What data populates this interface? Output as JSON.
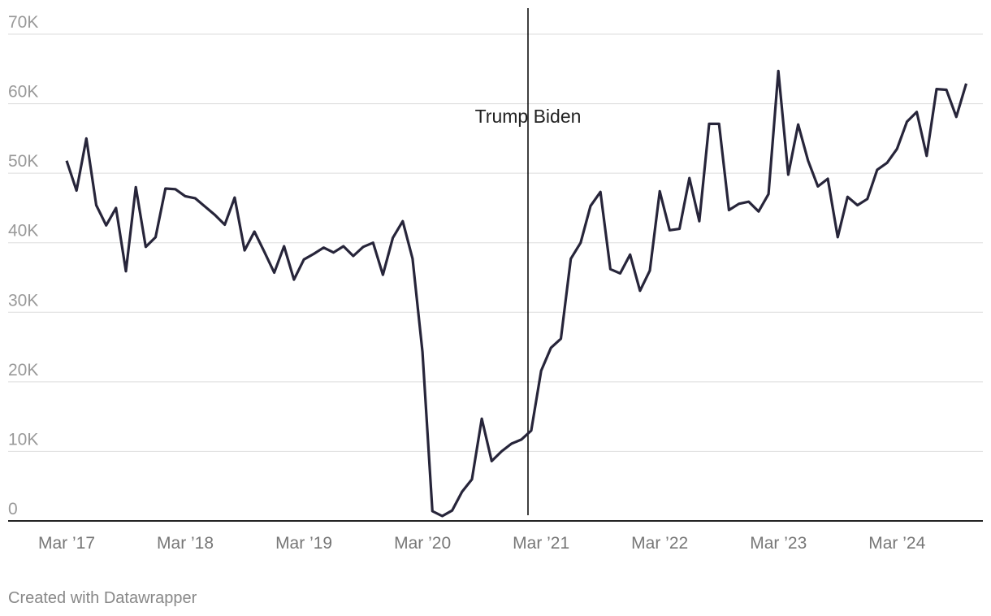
{
  "chart_data": {
    "type": "line",
    "x": [
      "2017-03",
      "2017-04",
      "2017-05",
      "2017-06",
      "2017-07",
      "2017-08",
      "2017-09",
      "2017-10",
      "2017-11",
      "2017-12",
      "2018-01",
      "2018-02",
      "2018-03",
      "2018-04",
      "2018-05",
      "2018-06",
      "2018-07",
      "2018-08",
      "2018-09",
      "2018-10",
      "2018-11",
      "2018-12",
      "2019-01",
      "2019-02",
      "2019-03",
      "2019-04",
      "2019-05",
      "2019-06",
      "2019-07",
      "2019-08",
      "2019-09",
      "2019-10",
      "2019-11",
      "2019-12",
      "2020-01",
      "2020-02",
      "2020-03",
      "2020-04",
      "2020-05",
      "2020-06",
      "2020-07",
      "2020-08",
      "2020-09",
      "2020-10",
      "2020-11",
      "2020-12",
      "2021-01",
      "2021-02",
      "2021-03",
      "2021-04",
      "2021-05",
      "2021-06",
      "2021-07",
      "2021-08",
      "2021-09",
      "2021-10",
      "2021-11",
      "2021-12",
      "2022-01",
      "2022-02",
      "2022-03",
      "2022-04",
      "2022-05",
      "2022-06",
      "2022-07",
      "2022-08",
      "2022-09",
      "2022-10",
      "2022-11",
      "2022-12",
      "2023-01",
      "2023-02",
      "2023-03",
      "2023-04",
      "2023-05",
      "2023-06",
      "2023-07",
      "2023-08",
      "2023-09",
      "2023-10",
      "2023-11",
      "2023-12",
      "2024-01",
      "2024-02",
      "2024-03",
      "2024-04",
      "2024-05",
      "2024-06",
      "2024-07",
      "2024-08",
      "2024-09",
      "2024-10"
    ],
    "series": [
      {
        "color": "#27253a",
        "values": [
          51800,
          47500,
          55000,
          45400,
          42500,
          45000,
          35900,
          48000,
          39400,
          40800,
          47800,
          47700,
          46700,
          46400,
          45200,
          44000,
          42600,
          46500,
          38900,
          41600,
          38700,
          35700,
          39500,
          34700,
          37600,
          38400,
          39300,
          38600,
          39500,
          38100,
          39400,
          40000,
          35400,
          40700,
          43100,
          37700,
          24300,
          1400,
          700,
          1500,
          4200,
          6000,
          14700,
          8600,
          10000,
          11100,
          11700,
          13000,
          21600,
          24900,
          26200,
          37700,
          40000,
          45300,
          47300,
          36200,
          35600,
          38300,
          33100,
          36000,
          47400,
          41800,
          42000,
          49300,
          43100,
          57100,
          57100,
          44700,
          45600,
          45900,
          44500,
          47000,
          64700,
          49800,
          57000,
          51800,
          48100,
          49200,
          40800,
          46600,
          45400,
          46300,
          50500,
          51500,
          53500,
          57400,
          58800,
          52500,
          62100,
          62000,
          58100,
          62900
        ]
      }
    ],
    "ylim": [
      0,
      70000
    ],
    "yticks": [
      0,
      {
        "value": 10000,
        "label": "10K"
      },
      {
        "value": 20000,
        "label": "20K"
      },
      {
        "value": 30000,
        "label": "30K"
      },
      {
        "value": 40000,
        "label": "40K"
      },
      {
        "value": 50000,
        "label": "50K"
      },
      {
        "value": 60000,
        "label": "60K"
      },
      {
        "value": 70000,
        "label": "70K"
      }
    ],
    "xticks": [
      {
        "value": "2017-03",
        "label": "Mar ’17"
      },
      {
        "value": "2018-03",
        "label": "Mar ’18"
      },
      {
        "value": "2019-03",
        "label": "Mar ’19"
      },
      {
        "value": "2020-03",
        "label": "Mar ’20"
      },
      {
        "value": "2021-03",
        "label": "Mar ’21"
      },
      {
        "value": "2022-03",
        "label": "Mar ’22"
      },
      {
        "value": "2023-03",
        "label": "Mar ’23"
      },
      {
        "value": "2024-03",
        "label": "Mar ’24"
      }
    ],
    "grid": true,
    "annotation": "Trump Biden",
    "footer": "Created with Datawrapper"
  }
}
